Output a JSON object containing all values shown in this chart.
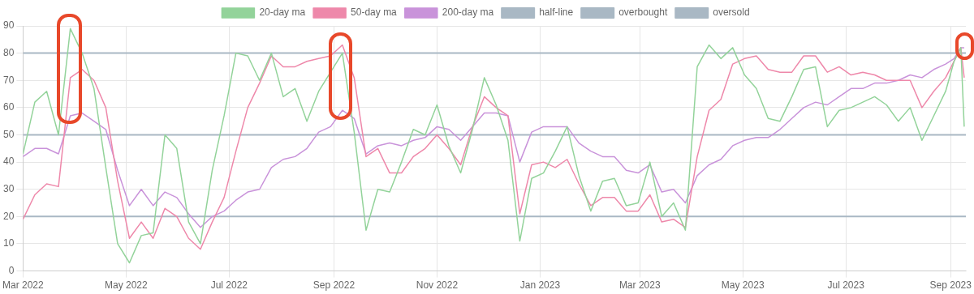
{
  "chart_data": {
    "type": "line",
    "x": [
      "2022-03-01",
      "2022-03-08",
      "2022-03-15",
      "2022-03-22",
      "2022-03-29",
      "2022-04-05",
      "2022-04-12",
      "2022-04-19",
      "2022-04-26",
      "2022-05-03",
      "2022-05-10",
      "2022-05-17",
      "2022-05-24",
      "2022-05-31",
      "2022-06-07",
      "2022-06-14",
      "2022-06-21",
      "2022-06-28",
      "2022-07-05",
      "2022-07-12",
      "2022-07-19",
      "2022-07-26",
      "2022-08-02",
      "2022-08-09",
      "2022-08-16",
      "2022-08-23",
      "2022-08-30",
      "2022-09-06",
      "2022-09-13",
      "2022-09-20",
      "2022-09-27",
      "2022-10-04",
      "2022-10-11",
      "2022-10-18",
      "2022-10-25",
      "2022-11-01",
      "2022-11-08",
      "2022-11-15",
      "2022-11-22",
      "2022-11-29",
      "2022-12-06",
      "2022-12-13",
      "2022-12-20",
      "2022-12-27",
      "2023-01-03",
      "2023-01-10",
      "2023-01-17",
      "2023-01-24",
      "2023-01-31",
      "2023-02-07",
      "2023-02-14",
      "2023-02-21",
      "2023-02-28",
      "2023-03-07",
      "2023-03-14",
      "2023-03-21",
      "2023-03-28",
      "2023-04-04",
      "2023-04-11",
      "2023-04-18",
      "2023-04-25",
      "2023-05-02",
      "2023-05-09",
      "2023-05-16",
      "2023-05-23",
      "2023-05-30",
      "2023-06-06",
      "2023-06-13",
      "2023-06-20",
      "2023-06-27",
      "2023-07-04",
      "2023-07-11",
      "2023-07-18",
      "2023-07-25",
      "2023-08-01",
      "2023-08-08",
      "2023-08-15",
      "2023-08-22",
      "2023-08-29",
      "2023-09-03",
      "2023-09-07",
      "2023-09-09"
    ],
    "series": [
      {
        "name": "20-day ma",
        "color": "#93d39a",
        "values": [
          43,
          62,
          66,
          50,
          89,
          80,
          67,
          38,
          10,
          3,
          13,
          14,
          50,
          45,
          18,
          10,
          37,
          57,
          80,
          79,
          70,
          80,
          64,
          67,
          55,
          66,
          73,
          80,
          51,
          15,
          30,
          29,
          40,
          52,
          50,
          61,
          46,
          36,
          52,
          71,
          61,
          48,
          11,
          34,
          36,
          44,
          53,
          35,
          22,
          33,
          34,
          24,
          25,
          40,
          20,
          25,
          15,
          75,
          83,
          78,
          82,
          72,
          67,
          56,
          55,
          64,
          74,
          75,
          53,
          59,
          60,
          62,
          64,
          61,
          55,
          60,
          48,
          57,
          66,
          77,
          82,
          53
        ]
      },
      {
        "name": "50-day ma",
        "color": "#ee88aa",
        "values": [
          19,
          28,
          32,
          31,
          71,
          74,
          70,
          60,
          33,
          12,
          18,
          12,
          23,
          20,
          12,
          8,
          18,
          27,
          44,
          60,
          69,
          79,
          75,
          75,
          77,
          78,
          79,
          83,
          71,
          42,
          45,
          36,
          36,
          42,
          45,
          50,
          45,
          39,
          53,
          64,
          60,
          57,
          21,
          39,
          40,
          38,
          41,
          32,
          24,
          27,
          27,
          22,
          22,
          28,
          18,
          19,
          16,
          42,
          59,
          63,
          76,
          78,
          79,
          74,
          73,
          73,
          79,
          79,
          73,
          75,
          72,
          73,
          72,
          70,
          70,
          70,
          60,
          66,
          71,
          77,
          82,
          71
        ]
      },
      {
        "name": "200-day ma",
        "color": "#c993da",
        "values": [
          42,
          45,
          45,
          43,
          57,
          58,
          55,
          52,
          37,
          24,
          30,
          24,
          29,
          27,
          21,
          16,
          20,
          22,
          26,
          29,
          30,
          38,
          41,
          42,
          45,
          51,
          53,
          59,
          56,
          43,
          46,
          47,
          46,
          48,
          49,
          53,
          52,
          48,
          53,
          58,
          58,
          57,
          40,
          51,
          53,
          53,
          53,
          47,
          44,
          42,
          42,
          37,
          36,
          39,
          29,
          30,
          25,
          35,
          39,
          41,
          46,
          48,
          49,
          49,
          52,
          56,
          60,
          62,
          61,
          64,
          67,
          67,
          69,
          69,
          70,
          72,
          71,
          74,
          76,
          78,
          82,
          82
        ]
      },
      {
        "name": "half-line",
        "color": "#a9b8c4",
        "x": [
          "2022-03-01",
          "2023-09-10"
        ],
        "values": [
          50,
          50
        ]
      },
      {
        "name": "overbought",
        "color": "#a9b8c4",
        "x": [
          "2022-03-01",
          "2023-09-10"
        ],
        "values": [
          80,
          80
        ]
      },
      {
        "name": "oversold",
        "color": "#a9b8c4",
        "x": [
          "2022-03-01",
          "2023-09-10"
        ],
        "values": [
          20,
          20
        ]
      }
    ],
    "xlim": [
      "2022-03-01",
      "2023-09-10"
    ],
    "xticks": [
      {
        "value": "2022-03",
        "label": "Mar 2022"
      },
      {
        "value": "2022-05",
        "label": "May 2022"
      },
      {
        "value": "2022-07",
        "label": "Jul 2022"
      },
      {
        "value": "2022-09",
        "label": "Sep 2022"
      },
      {
        "value": "2022-11",
        "label": "Nov 2022"
      },
      {
        "value": "2023-01",
        "label": "Jan 2023"
      },
      {
        "value": "2023-03",
        "label": "Mar 2023"
      },
      {
        "value": "2023-05",
        "label": "May 2023"
      },
      {
        "value": "2023-07",
        "label": "Jul 2023"
      },
      {
        "value": "2023-09",
        "label": "Sep 2023"
      }
    ],
    "ylim": [
      0,
      90
    ],
    "yticks": [
      0,
      10,
      20,
      30,
      40,
      50,
      60,
      70,
      80,
      90
    ],
    "grid": true,
    "legend": "top",
    "marker": "none",
    "line_style": "solid"
  }
}
